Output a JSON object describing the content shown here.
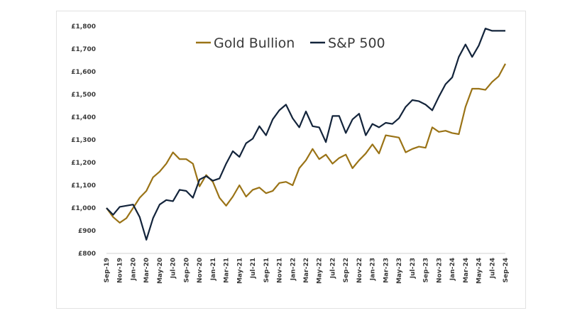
{
  "chart_data": {
    "type": "line",
    "title": "",
    "xlabel": "",
    "ylabel": "",
    "ylim": [
      800,
      1800
    ],
    "grid": false,
    "legend": "top-center",
    "y_ticks": [
      "£800",
      "£900",
      "£1,000",
      "£1,100",
      "£1,200",
      "£1,300",
      "£1,400",
      "£1,500",
      "£1,600",
      "£1,700",
      "£1,800"
    ],
    "y_tick_values": [
      800,
      900,
      1000,
      1100,
      1200,
      1300,
      1400,
      1500,
      1600,
      1700,
      1800
    ],
    "x_tick_labels": [
      "Sep-19",
      "Nov-19",
      "Jan-20",
      "Mar-20",
      "May-20",
      "Jul-20",
      "Sep-20",
      "Nov-20",
      "Jan-21",
      "Mar-21",
      "May-21",
      "Jul-21",
      "Sep-21",
      "Nov-21",
      "Jan-22",
      "Mar-22",
      "May-22",
      "Jul-22",
      "Sep-22",
      "Nov-22",
      "Jan-23",
      "Mar-23",
      "May-23",
      "Jul-23",
      "Sep-23",
      "Nov-23",
      "Jan-24",
      "Mar-24",
      "May-24",
      "Jul-24",
      "Sep-24"
    ],
    "x_tick_every": 2,
    "n_points": 61,
    "series": [
      {
        "name": "Gold Bullion",
        "color": "#9a7316",
        "values": [
          1000,
          960,
          935,
          955,
          1000,
          1045,
          1075,
          1135,
          1160,
          1195,
          1245,
          1215,
          1215,
          1195,
          1095,
          1145,
          1115,
          1045,
          1010,
          1050,
          1100,
          1050,
          1080,
          1090,
          1065,
          1075,
          1110,
          1115,
          1100,
          1175,
          1210,
          1260,
          1215,
          1235,
          1195,
          1220,
          1235,
          1175,
          1210,
          1240,
          1280,
          1240,
          1320,
          1315,
          1310,
          1245,
          1260,
          1270,
          1265,
          1355,
          1335,
          1340,
          1330,
          1325,
          1445,
          1525,
          1525,
          1520,
          1555,
          1580,
          1635
        ]
      },
      {
        "name": "S&P 500",
        "color": "#13243b",
        "values": [
          1000,
          970,
          1005,
          1010,
          1015,
          960,
          860,
          955,
          1015,
          1035,
          1030,
          1080,
          1075,
          1045,
          1125,
          1140,
          1120,
          1130,
          1195,
          1250,
          1225,
          1285,
          1305,
          1360,
          1320,
          1390,
          1430,
          1455,
          1395,
          1355,
          1425,
          1360,
          1355,
          1290,
          1405,
          1405,
          1330,
          1390,
          1415,
          1320,
          1370,
          1355,
          1375,
          1370,
          1395,
          1445,
          1475,
          1470,
          1455,
          1430,
          1490,
          1545,
          1575,
          1665,
          1720,
          1665,
          1715,
          1790,
          1780,
          1780,
          1780
        ]
      }
    ]
  }
}
